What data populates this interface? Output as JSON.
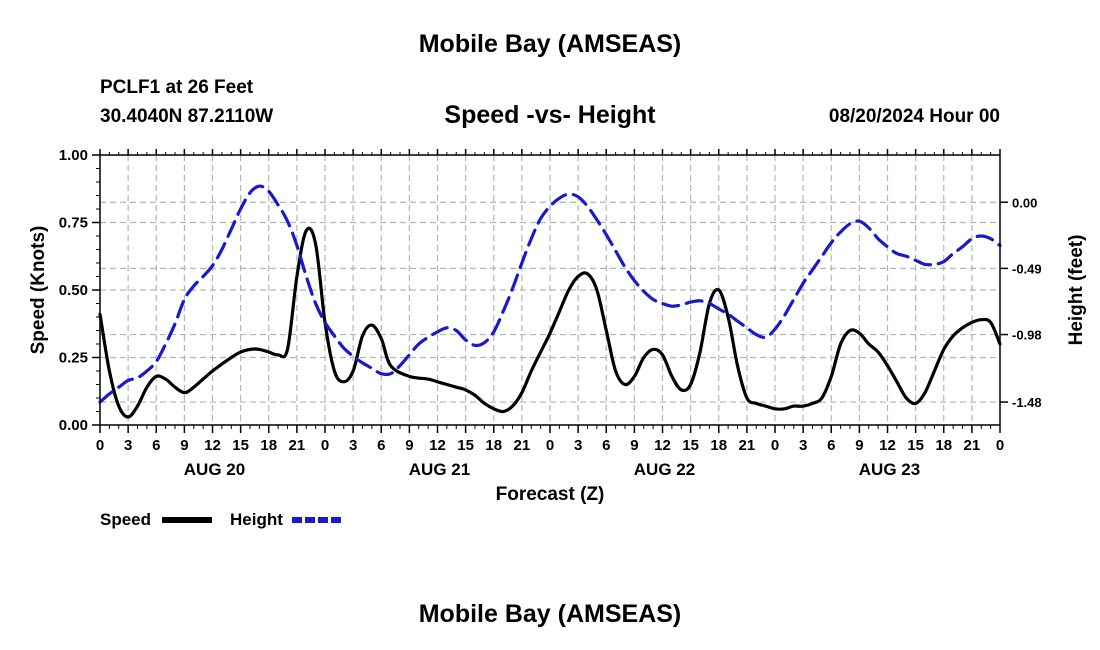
{
  "page": {
    "title": "Mobile Bay (AMSEAS)",
    "title_repeat": "Mobile Bay (AMSEAS)",
    "station": "PCLF1 at 26 Feet",
    "coords": "30.4040N  87.2110W",
    "datetime": "08/20/2024 Hour 00"
  },
  "chart_data": {
    "type": "line",
    "title": "Speed -vs- Height",
    "xlabel": "Forecast (Z)",
    "ylabel": "Speed (Knots)",
    "y2label": "Height (feet)",
    "x_units": "hours from 08/20/2024 00Z",
    "xlim": [
      0,
      96
    ],
    "ylim": [
      0,
      1.0
    ],
    "y2lim": [
      -1.65,
      0.35
    ],
    "grid": true,
    "x_ticks": [
      0,
      3,
      6,
      9,
      12,
      15,
      18,
      21,
      24,
      27,
      30,
      33,
      36,
      39,
      42,
      45,
      48,
      51,
      54,
      57,
      60,
      63,
      66,
      69,
      72,
      75,
      78,
      81,
      84,
      87,
      90,
      93,
      96
    ],
    "x_tick_labels": [
      "0",
      "3",
      "6",
      "9",
      "12",
      "15",
      "18",
      "21",
      "0",
      "3",
      "6",
      "9",
      "12",
      "15",
      "18",
      "21",
      "0",
      "3",
      "6",
      "9",
      "12",
      "15",
      "18",
      "21",
      "0",
      "3",
      "6",
      "9",
      "12",
      "15",
      "18",
      "21",
      "0"
    ],
    "day_labels": [
      {
        "x": 12,
        "label": "AUG 20"
      },
      {
        "x": 36,
        "label": "AUG 21"
      },
      {
        "x": 60,
        "label": "AUG 22"
      },
      {
        "x": 84,
        "label": "AUG 23"
      }
    ],
    "y_ticks": [
      0.0,
      0.25,
      0.5,
      0.75,
      1.0
    ],
    "y_tick_labels": [
      "0.00",
      "0.25",
      "0.50",
      "0.75",
      "1.00"
    ],
    "y2_ticks": [
      0.0,
      -0.49,
      -0.98,
      -1.48
    ],
    "y2_tick_labels": [
      "0.00",
      "-0.49",
      "-0.98",
      "-1.48"
    ],
    "legend": {
      "placement": "bottom-left",
      "items": [
        {
          "label": "Speed",
          "color": "#000000",
          "dash": false
        },
        {
          "label": "Height",
          "color": "#1a1acc",
          "dash": true
        }
      ]
    },
    "series": [
      {
        "name": "Speed",
        "axis": "left",
        "color": "#000000",
        "x": [
          0,
          1,
          2,
          3,
          4,
          5,
          6,
          7,
          8,
          9,
          10,
          12,
          14,
          15,
          16,
          17,
          18,
          19,
          20,
          21,
          22,
          23,
          24,
          25,
          26,
          27,
          28,
          29,
          30,
          31,
          33,
          35,
          36,
          37,
          38,
          39,
          40,
          41,
          42,
          43,
          44,
          45,
          46,
          47,
          48,
          49,
          50,
          51,
          52,
          53,
          54,
          55,
          56,
          57,
          58,
          59,
          60,
          61,
          62,
          63,
          64,
          65,
          66,
          67,
          68,
          69,
          70,
          71,
          72,
          73,
          74,
          75,
          76,
          77,
          78,
          79,
          80,
          81,
          82,
          83,
          84,
          85,
          86,
          87,
          88,
          89,
          90,
          91,
          92,
          93,
          94,
          95,
          96
        ],
        "values": [
          0.41,
          0.2,
          0.07,
          0.03,
          0.07,
          0.14,
          0.18,
          0.17,
          0.14,
          0.12,
          0.14,
          0.2,
          0.25,
          0.27,
          0.28,
          0.28,
          0.27,
          0.26,
          0.28,
          0.55,
          0.72,
          0.67,
          0.38,
          0.2,
          0.16,
          0.2,
          0.33,
          0.37,
          0.32,
          0.22,
          0.18,
          0.17,
          0.16,
          0.15,
          0.14,
          0.13,
          0.11,
          0.08,
          0.06,
          0.05,
          0.07,
          0.12,
          0.2,
          0.27,
          0.34,
          0.42,
          0.5,
          0.55,
          0.56,
          0.5,
          0.35,
          0.2,
          0.15,
          0.18,
          0.25,
          0.28,
          0.26,
          0.18,
          0.13,
          0.15,
          0.27,
          0.45,
          0.5,
          0.4,
          0.22,
          0.1,
          0.08,
          0.07,
          0.06,
          0.06,
          0.07,
          0.07,
          0.08,
          0.1,
          0.18,
          0.3,
          0.35,
          0.34,
          0.3,
          0.27,
          0.22,
          0.16,
          0.1,
          0.08,
          0.12,
          0.2,
          0.28,
          0.33,
          0.36,
          0.38,
          0.39,
          0.38,
          0.3
        ]
      },
      {
        "name": "Height",
        "axis": "right",
        "color": "#1a1acc",
        "x": [
          0,
          1,
          2,
          3,
          4,
          5,
          6,
          7,
          8,
          9,
          10,
          11,
          12,
          13,
          14,
          15,
          16,
          17,
          18,
          19,
          20,
          21,
          22,
          23,
          24,
          25,
          26,
          27,
          28,
          29,
          30,
          31,
          32,
          33,
          34,
          35,
          36,
          37,
          38,
          39,
          40,
          41,
          42,
          43,
          44,
          45,
          46,
          47,
          48,
          49,
          50,
          51,
          52,
          53,
          54,
          55,
          56,
          57,
          58,
          59,
          60,
          61,
          62,
          63,
          64,
          65,
          66,
          67,
          68,
          69,
          70,
          71,
          72,
          73,
          74,
          75,
          76,
          77,
          78,
          79,
          80,
          81,
          82,
          83,
          84,
          85,
          86,
          87,
          88,
          89,
          90,
          91,
          92,
          93,
          94,
          95,
          96
        ],
        "values": [
          -1.48,
          -1.42,
          -1.37,
          -1.32,
          -1.3,
          -1.25,
          -1.18,
          -1.05,
          -0.9,
          -0.72,
          -0.62,
          -0.55,
          -0.47,
          -0.35,
          -0.2,
          -0.05,
          0.07,
          0.12,
          0.08,
          -0.02,
          -0.14,
          -0.32,
          -0.55,
          -0.75,
          -0.89,
          -0.99,
          -1.08,
          -1.14,
          -1.19,
          -1.23,
          -1.27,
          -1.27,
          -1.21,
          -1.13,
          -1.05,
          -1.0,
          -0.96,
          -0.93,
          -0.95,
          -1.02,
          -1.06,
          -1.04,
          -0.96,
          -0.81,
          -0.64,
          -0.45,
          -0.27,
          -0.12,
          -0.03,
          0.03,
          0.06,
          0.04,
          -0.03,
          -0.13,
          -0.24,
          -0.36,
          -0.48,
          -0.58,
          -0.66,
          -0.72,
          -0.75,
          -0.77,
          -0.76,
          -0.74,
          -0.73,
          -0.75,
          -0.79,
          -0.83,
          -0.88,
          -0.93,
          -0.98,
          -1.0,
          -0.94,
          -0.84,
          -0.72,
          -0.6,
          -0.5,
          -0.4,
          -0.3,
          -0.22,
          -0.16,
          -0.14,
          -0.19,
          -0.27,
          -0.33,
          -0.38,
          -0.4,
          -0.43,
          -0.46,
          -0.46,
          -0.44,
          -0.38,
          -0.33,
          -0.27,
          -0.25,
          -0.27,
          -0.32
        ]
      }
    ]
  }
}
